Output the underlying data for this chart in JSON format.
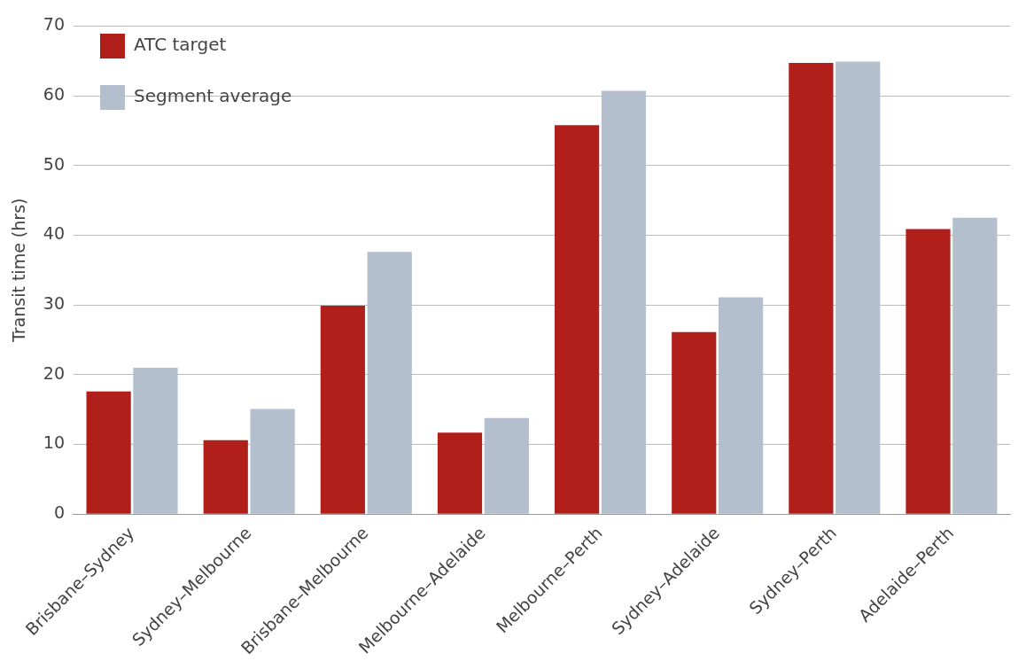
{
  "chart_data": {
    "type": "bar",
    "ylabel": "Transit time (hrs)",
    "categories": [
      "Brisbane–Sydney",
      "Sydney–Melbourne",
      "Brisbane–Melbourne",
      "Melbourne–Adelaide",
      "Melbourne–Perth",
      "Sydney–Adelaide",
      "Sydney–Perth",
      "Adelaide–Perth"
    ],
    "series": [
      {
        "name": "ATC target",
        "color": "#b01f1a",
        "values": [
          17.6,
          10.6,
          29.9,
          11.7,
          55.8,
          26.1,
          64.7,
          40.9
        ]
      },
      {
        "name": "Segment average",
        "color": "#b3bfcc",
        "values": [
          21.0,
          15.1,
          37.6,
          13.8,
          60.7,
          31.1,
          64.9,
          42.5
        ]
      }
    ],
    "ylim": [
      0,
      70
    ],
    "yticks": [
      0,
      10,
      20,
      30,
      40,
      50,
      60,
      70
    ],
    "grid": "y",
    "legend": "top left"
  }
}
